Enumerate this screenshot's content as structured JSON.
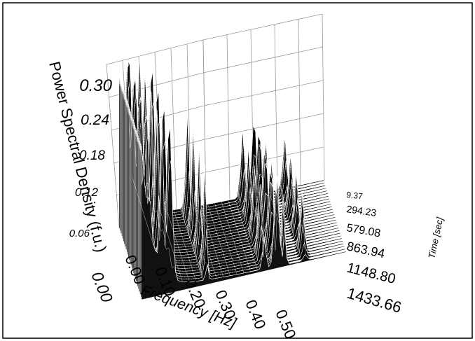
{
  "chart_data": {
    "type": "surface3d",
    "title": "",
    "xlabel": "Frequency [Hz]",
    "ylabel": "Time [sec]",
    "zlabel": "Power Spectral Density (f.u.)",
    "x_ticks": [
      "0.00",
      "0.10",
      "0.20",
      "0.30",
      "0.40",
      "0.50"
    ],
    "y_ticks": [
      "9.37",
      "294.23",
      "579.08",
      "863.94",
      "1148.80",
      "1433.66"
    ],
    "z_ticks": [
      "0.06",
      "0.12",
      "0.18",
      "0.24",
      "0.30"
    ],
    "xlim": [
      0,
      0.5
    ],
    "ylim": [
      9.37,
      1433.66
    ],
    "zlim": [
      0,
      0.3
    ],
    "grid": true,
    "peaks": [
      {
        "frequency": 0.02,
        "amplitude": 0.3
      },
      {
        "frequency": 0.05,
        "amplitude": 0.3
      },
      {
        "frequency": 0.07,
        "amplitude": 0.29
      },
      {
        "frequency": 0.16,
        "amplitude": 0.21
      },
      {
        "frequency": 0.3,
        "amplitude": 0.13
      },
      {
        "frequency": 0.33,
        "amplitude": 0.15
      },
      {
        "frequency": 0.35,
        "amplitude": 0.12
      },
      {
        "frequency": 0.4,
        "amplitude": 0.11
      }
    ]
  }
}
